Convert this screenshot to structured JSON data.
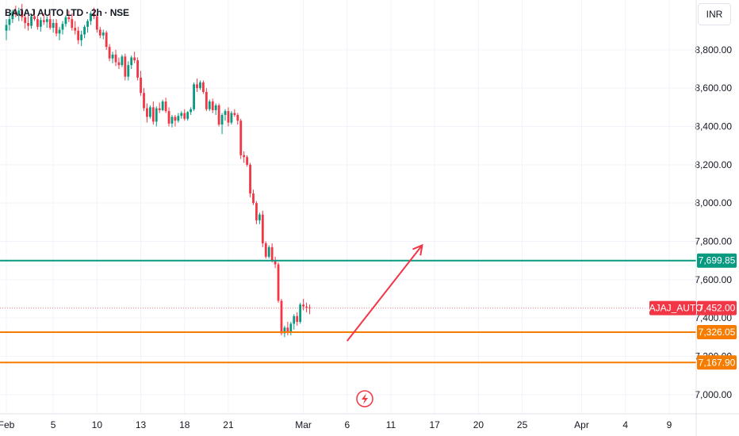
{
  "header": {
    "symbol_title": "BAJAJ AUTO LTD · 2h · NSE",
    "currency": "INR"
  },
  "chart_data": {
    "type": "candlestick",
    "symbol": "BAJAJ_AUTO",
    "interval": "2h",
    "exchange": "NSE",
    "ylim": [
      6900,
      9060
    ],
    "y_ticks": [
      7000,
      7200,
      7400,
      7600,
      7800,
      8000,
      8200,
      8400,
      8600,
      8800
    ],
    "y_tick_labels": [
      "7,000.00",
      "7,200.00",
      "7,400.00",
      "7,600.00",
      "7,800.00",
      "8,000.00",
      "8,200.00",
      "8,400.00",
      "8,600.00",
      "8,800.00"
    ],
    "x_ticks": [
      {
        "label": "Feb",
        "index": 0
      },
      {
        "label": "5",
        "index": 15
      },
      {
        "label": "10",
        "index": 29
      },
      {
        "label": "13",
        "index": 43
      },
      {
        "label": "18",
        "index": 57
      },
      {
        "label": "21",
        "index": 71
      },
      {
        "label": "Mar",
        "index": 95
      },
      {
        "label": "6",
        "index": 109
      },
      {
        "label": "11",
        "index": 123
      },
      {
        "label": "17",
        "index": 137
      },
      {
        "label": "20",
        "index": 151
      },
      {
        "label": "25",
        "index": 165
      },
      {
        "label": "Apr",
        "index": 184
      },
      {
        "label": "4",
        "index": 198
      },
      {
        "label": "9",
        "index": 212
      }
    ],
    "candles": [
      [
        8900,
        8960,
        8850,
        8930
      ],
      [
        8930,
        8990,
        8900,
        8960
      ],
      [
        8960,
        9010,
        8940,
        9000
      ],
      [
        9000,
        9030,
        8970,
        8985
      ],
      [
        8985,
        9020,
        8950,
        9005
      ],
      [
        9005,
        9040,
        8950,
        8970
      ],
      [
        8970,
        8995,
        8910,
        8940
      ],
      [
        8940,
        8980,
        8900,
        8925
      ],
      [
        8925,
        8990,
        8910,
        8975
      ],
      [
        8975,
        9010,
        8950,
        8960
      ],
      [
        8960,
        8980,
        8905,
        8920
      ],
      [
        8920,
        8970,
        8895,
        8955
      ],
      [
        8955,
        8990,
        8930,
        8945
      ],
      [
        8945,
        8975,
        8915,
        8960
      ],
      [
        8960,
        8985,
        8905,
        8915
      ],
      [
        8915,
        8960,
        8890,
        8940
      ],
      [
        8940,
        8960,
        8870,
        8885
      ],
      [
        8885,
        8920,
        8850,
        8905
      ],
      [
        8905,
        8950,
        8880,
        8935
      ],
      [
        8935,
        8980,
        8920,
        8970
      ],
      [
        8970,
        9005,
        8945,
        8960
      ],
      [
        8960,
        8990,
        8900,
        8915
      ],
      [
        8915,
        8950,
        8880,
        8900
      ],
      [
        8900,
        8920,
        8830,
        8850
      ],
      [
        8850,
        8900,
        8820,
        8880
      ],
      [
        8880,
        8930,
        8860,
        8920
      ],
      [
        8920,
        8960,
        8890,
        8950
      ],
      [
        8950,
        9000,
        8930,
        8990
      ],
      [
        8990,
        9020,
        8960,
        8975
      ],
      [
        8975,
        8990,
        8890,
        8905
      ],
      [
        8905,
        8920,
        8860,
        8875
      ],
      [
        8875,
        8905,
        8855,
        8890
      ],
      [
        8890,
        8900,
        8800,
        8815
      ],
      [
        8815,
        8830,
        8740,
        8755
      ],
      [
        8755,
        8790,
        8730,
        8775
      ],
      [
        8775,
        8800,
        8715,
        8735
      ],
      [
        8735,
        8760,
        8700,
        8720
      ],
      [
        8720,
        8775,
        8710,
        8765
      ],
      [
        8765,
        8780,
        8640,
        8660
      ],
      [
        8660,
        8740,
        8640,
        8720
      ],
      [
        8720,
        8770,
        8700,
        8760
      ],
      [
        8760,
        8790,
        8730,
        8745
      ],
      [
        8745,
        8760,
        8640,
        8655
      ],
      [
        8655,
        8690,
        8560,
        8575
      ],
      [
        8575,
        8600,
        8480,
        8495
      ],
      [
        8495,
        8520,
        8420,
        8450
      ],
      [
        8450,
        8510,
        8440,
        8500
      ],
      [
        8500,
        8530,
        8410,
        8425
      ],
      [
        8425,
        8505,
        8400,
        8495
      ],
      [
        8495,
        8525,
        8470,
        8485
      ],
      [
        8485,
        8540,
        8480,
        8530
      ],
      [
        8530,
        8550,
        8470,
        8480
      ],
      [
        8480,
        8500,
        8400,
        8415
      ],
      [
        8415,
        8460,
        8395,
        8450
      ],
      [
        8450,
        8460,
        8400,
        8430
      ],
      [
        8430,
        8470,
        8420,
        8455
      ],
      [
        8455,
        8480,
        8440,
        8470
      ],
      [
        8470,
        8490,
        8430,
        8440
      ],
      [
        8440,
        8480,
        8430,
        8475
      ],
      [
        8475,
        8500,
        8460,
        8490
      ],
      [
        8490,
        8630,
        8480,
        8620
      ],
      [
        8620,
        8650,
        8580,
        8600
      ],
      [
        8600,
        8640,
        8590,
        8630
      ],
      [
        8630,
        8640,
        8570,
        8580
      ],
      [
        8580,
        8600,
        8480,
        8490
      ],
      [
        8490,
        8540,
        8480,
        8530
      ],
      [
        8530,
        8545,
        8470,
        8485
      ],
      [
        8485,
        8520,
        8460,
        8510
      ],
      [
        8510,
        8520,
        8400,
        8410
      ],
      [
        8410,
        8470,
        8360,
        8460
      ],
      [
        8460,
        8490,
        8430,
        8480
      ],
      [
        8480,
        8500,
        8400,
        8420
      ],
      [
        8420,
        8480,
        8410,
        8470
      ],
      [
        8470,
        8490,
        8450,
        8460
      ],
      [
        8460,
        8470,
        8410,
        8430
      ],
      [
        8430,
        8440,
        8230,
        8250
      ],
      [
        8250,
        8270,
        8210,
        8240
      ],
      [
        8240,
        8250,
        8190,
        8200
      ],
      [
        8200,
        8210,
        8030,
        8050
      ],
      [
        8050,
        8070,
        7990,
        8000
      ],
      [
        8000,
        8010,
        7890,
        7910
      ],
      [
        7910,
        7950,
        7890,
        7940
      ],
      [
        7940,
        7960,
        7770,
        7790
      ],
      [
        7790,
        7800,
        7710,
        7720
      ],
      [
        7720,
        7780,
        7710,
        7770
      ],
      [
        7770,
        7790,
        7690,
        7700
      ],
      [
        7700,
        7720,
        7660,
        7680
      ],
      [
        7680,
        7690,
        7480,
        7490
      ],
      [
        7490,
        7500,
        7310,
        7320
      ],
      [
        7320,
        7360,
        7300,
        7350
      ],
      [
        7350,
        7380,
        7310,
        7330
      ],
      [
        7330,
        7380,
        7310,
        7370
      ],
      [
        7370,
        7420,
        7340,
        7410
      ],
      [
        7410,
        7430,
        7360,
        7380
      ],
      [
        7380,
        7480,
        7370,
        7470
      ],
      [
        7470,
        7500,
        7440,
        7460
      ],
      [
        7460,
        7480,
        7430,
        7455
      ],
      [
        7455,
        7470,
        7420,
        7452
      ]
    ],
    "levels": [
      {
        "price": 7699.85,
        "label": "7,699.85",
        "color": "#089981"
      },
      {
        "price": 7326.05,
        "label": "7,326.05",
        "color": "#f57c00"
      },
      {
        "price": 7167.9,
        "label": "7,167.90",
        "color": "#f57c00"
      }
    ],
    "last_price": {
      "price": 7452.0,
      "label": "7,452.00",
      "name": "BAJAJ_AUTO",
      "color": "#f23645"
    },
    "arrow": {
      "from": {
        "index": 109,
        "price": 7280
      },
      "to": {
        "index": 133,
        "price": 7780
      },
      "color": "#f23645"
    },
    "colors": {
      "up": "#089981",
      "down": "#f23645",
      "grid": "#f0f3fa"
    }
  }
}
